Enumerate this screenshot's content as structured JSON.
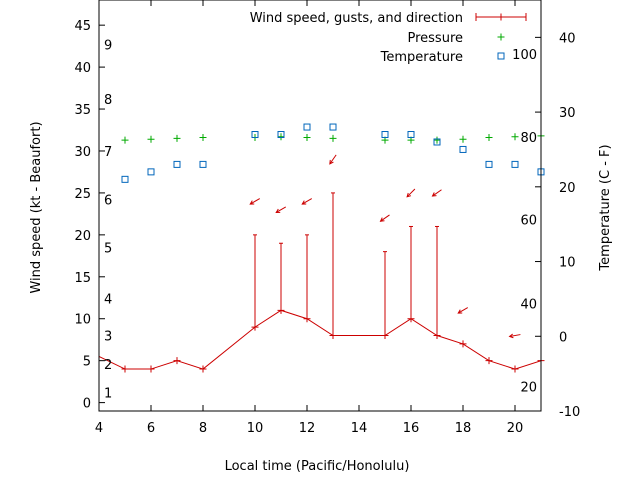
{
  "chart_data": {
    "type": "line",
    "xlabel": "Local time (Pacific/Honolulu)",
    "ylabel_left": "Wind speed (kt - Beaufort)",
    "ylabel_right": "Temperature (C - F)",
    "xlim": [
      4,
      21
    ],
    "ylim_left": [
      -1,
      48
    ],
    "ylim_right": [
      -10,
      45
    ],
    "x_ticks": [
      4,
      6,
      8,
      10,
      12,
      14,
      16,
      18,
      20
    ],
    "y_ticks_left": [
      0,
      5,
      10,
      15,
      20,
      25,
      30,
      35,
      40,
      45
    ],
    "y_ticks_right": [
      -10,
      0,
      10,
      20,
      30,
      40
    ],
    "beaufort_labels": [
      {
        "label": "1",
        "knots": 1.2
      },
      {
        "label": "2",
        "knots": 4.6
      },
      {
        "label": "3",
        "knots": 8.0
      },
      {
        "label": "4",
        "knots": 12.4
      },
      {
        "label": "5",
        "knots": 18.5
      },
      {
        "label": "6",
        "knots": 24.2
      },
      {
        "label": "7",
        "knots": 30.0
      },
      {
        "label": "8",
        "knots": 36.2
      },
      {
        "label": "9",
        "knots": 42.7
      }
    ],
    "fahrenheit_labels": [
      {
        "label": "20",
        "celsius": -6.7
      },
      {
        "label": "40",
        "celsius": 4.4
      },
      {
        "label": "60",
        "celsius": 15.6
      },
      {
        "label": "80",
        "celsius": 26.7
      },
      {
        "label": "100",
        "celsius": 37.8
      }
    ],
    "legend": {
      "position": "top-right",
      "entries": [
        "Wind speed, gusts, and direction",
        "Pressure",
        "Temperature"
      ]
    },
    "colors": {
      "wind": "#cc0000",
      "pressure": "#00aa00",
      "temperature": "#0066bb",
      "axis": "#000000"
    },
    "series": [
      {
        "name": "Wind speed",
        "x": [
          4,
          5,
          6,
          7,
          8,
          10,
          11,
          12,
          13,
          15,
          16,
          17,
          18,
          19,
          20,
          21
        ],
        "values": [
          5.5,
          4,
          4,
          5,
          4,
          9,
          11,
          10,
          8,
          8,
          10,
          8,
          7,
          5,
          4,
          5
        ]
      },
      {
        "name": "Gusts",
        "x": [
          10,
          11,
          12,
          13,
          15,
          16,
          17
        ],
        "values": [
          20,
          19,
          20,
          25,
          18,
          21,
          21
        ]
      },
      {
        "name": "Direction arrows",
        "x": [
          10,
          11,
          12,
          13,
          15,
          16,
          17,
          18,
          20
        ],
        "values": [
          24,
          23,
          24,
          29,
          22,
          25,
          25,
          11,
          8
        ],
        "direction_deg": [
          60,
          60,
          60,
          35,
          55,
          45,
          55,
          60,
          80
        ]
      },
      {
        "name": "Pressure",
        "x": [
          5,
          6,
          7,
          8,
          10,
          11,
          12,
          13,
          15,
          16,
          17,
          18,
          19,
          20,
          21
        ],
        "values": [
          31.3,
          31.4,
          31.5,
          31.6,
          31.6,
          31.7,
          31.6,
          31.5,
          31.3,
          31.3,
          31.3,
          31.4,
          31.6,
          31.7,
          31.8
        ]
      },
      {
        "name": "Temperature",
        "x": [
          5,
          6,
          7,
          8,
          10,
          11,
          12,
          13,
          15,
          16,
          17,
          18,
          19,
          20,
          21
        ],
        "values": [
          21,
          22,
          23,
          23,
          27,
          27,
          28,
          28,
          27,
          27,
          26,
          25,
          23,
          23,
          22
        ]
      }
    ]
  }
}
